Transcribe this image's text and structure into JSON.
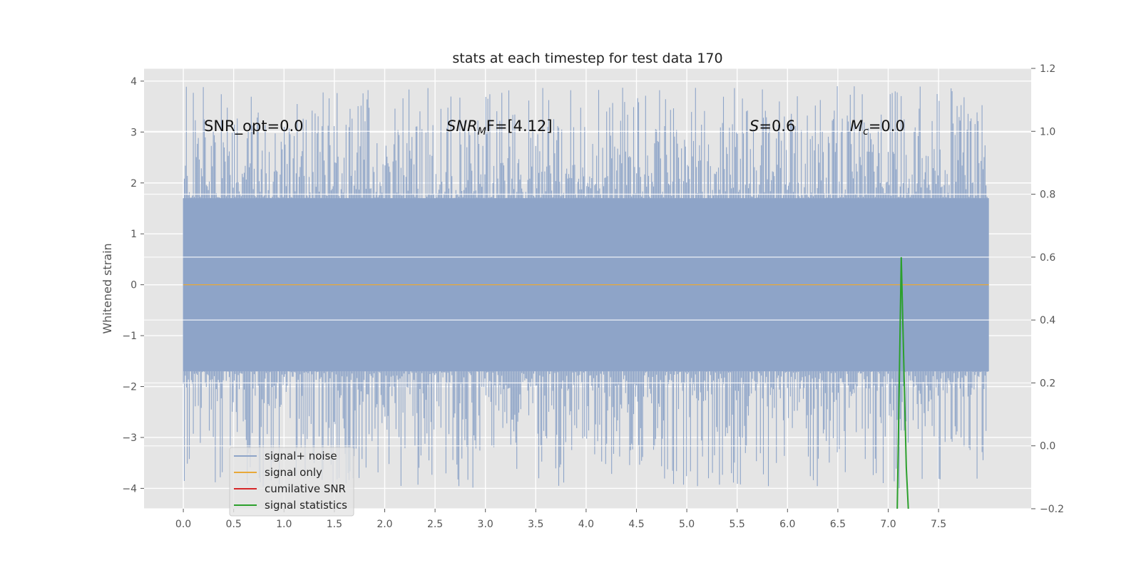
{
  "chart_data": {
    "type": "line",
    "title": "stats at each timestep for test data 170",
    "ylabel": "Whitened strain",
    "xlabel": "",
    "xlim": [
      -0.39,
      8.42
    ],
    "ylim": [
      -4.4,
      4.25
    ],
    "y2lim": [
      -0.2,
      1.2
    ],
    "xticks": [
      "0.0",
      "0.5",
      "1.0",
      "1.5",
      "2.0",
      "2.5",
      "3.0",
      "3.5",
      "4.0",
      "4.5",
      "5.0",
      "5.5",
      "6.0",
      "6.5",
      "7.0",
      "7.5"
    ],
    "yticks": [
      "−4",
      "−3",
      "−2",
      "−1",
      "0",
      "1",
      "2",
      "3",
      "4"
    ],
    "y2ticks": [
      "−0.2",
      "0.0",
      "0.2",
      "0.4",
      "0.6",
      "0.8",
      "1.0",
      "1.2"
    ],
    "grid": true,
    "legend_position": "lower-left",
    "series": [
      {
        "name": "signal+ noise",
        "color": "#8ea4c8",
        "axis": "left",
        "style": "noise-band",
        "x_range": [
          0.0,
          8.0
        ],
        "core_range": [
          -1.7,
          1.7
        ],
        "spike_max": 3.9,
        "spike_min": -4.0
      },
      {
        "name": "signal only",
        "color": "#e8a838",
        "axis": "left",
        "x": [
          0.0,
          8.0
        ],
        "y": [
          0.0,
          0.0
        ]
      },
      {
        "name": "cumilative SNR",
        "color": "#d62728",
        "axis": "right",
        "x": [],
        "y": []
      },
      {
        "name": "signal statistics",
        "color": "#2ca02c",
        "axis": "right",
        "x": [
          7.09,
          7.13,
          7.18,
          7.2
        ],
        "y": [
          -0.2,
          0.6,
          -0.07,
          -0.2
        ]
      }
    ],
    "annotations": {
      "snr_opt": "SNR_opt=0.0",
      "snr_mf_name": "SNR",
      "snr_mf_sub": "M",
      "snr_mf_rest": "F=[4.12]",
      "s_name": "S",
      "s_rest": "=0.6",
      "mc_name": "M",
      "mc_sub": "c",
      "mc_rest": "=0.0"
    },
    "background_color": "#e5e5e5",
    "grid_color": "#ffffff"
  }
}
